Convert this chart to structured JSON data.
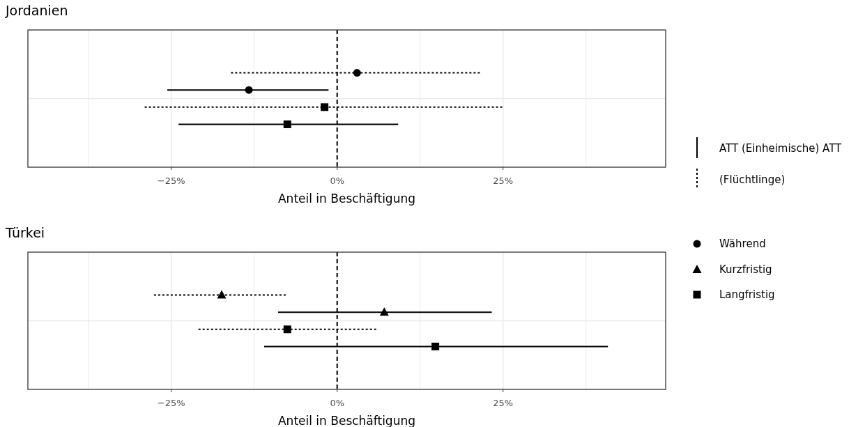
{
  "chart_data": [
    {
      "type": "scatter",
      "orientation": "horizontal",
      "title": "Jordanien",
      "xlabel": "Anteil in Beschäftigung",
      "categories": [
        null,
        null,
        null,
        null,
        null,
        null,
        null,
        null
      ],
      "xlim": [
        -46.6,
        49.5
      ],
      "xticks": [
        {
          "value": -25,
          "label": "−25%"
        },
        {
          "value": 0,
          "label": "0%"
        },
        {
          "value": 25,
          "label": "25%"
        }
      ],
      "grid": true,
      "ref_lines": [
        {
          "axis": "x",
          "value": 0,
          "line_style": "dashed",
          "color": "#000000"
        }
      ],
      "annotations": [
        "ATT (Einheimische) ATT",
        "(Flüchtlinge)",
        "Während",
        "Kurzfristig",
        "Langfristig"
      ],
      "series": [
        {
          "color": "#000000",
          "marker": "circle",
          "line_style": "dotted",
          "values": [
            null,
            null,
            3.0,
            null,
            null,
            null,
            null,
            null
          ],
          "errors": [
            null,
            null,
            [
              -16.0,
              21.5
            ],
            null,
            null,
            null,
            null,
            null
          ]
        },
        {
          "color": "#000000",
          "marker": "circle",
          "line_style": "solid",
          "values": [
            null,
            null,
            null,
            -13.3,
            null,
            null,
            null,
            null
          ],
          "errors": [
            null,
            null,
            null,
            [
              -25.6,
              -1.3
            ],
            null,
            null,
            null,
            null
          ]
        },
        {
          "color": "#000000",
          "marker": "square",
          "line_style": "dotted",
          "values": [
            null,
            null,
            null,
            null,
            -1.9,
            null,
            null,
            null
          ],
          "errors": [
            null,
            null,
            null,
            null,
            [
              -29.0,
              25.2
            ],
            null,
            null,
            null
          ]
        },
        {
          "color": "#000000",
          "marker": "square",
          "line_style": "solid",
          "values": [
            null,
            null,
            null,
            null,
            null,
            -7.5,
            null,
            null
          ],
          "errors": [
            null,
            null,
            null,
            null,
            null,
            [
              -23.9,
              9.2
            ],
            null,
            null
          ]
        }
      ]
    },
    {
      "type": "scatter",
      "orientation": "horizontal",
      "title": "Türkei",
      "xlabel": "Anteil in Beschäftigung",
      "categories": [
        null,
        null,
        null,
        null,
        null,
        null,
        null,
        null
      ],
      "xlim": [
        -46.6,
        49.5
      ],
      "xticks": [
        {
          "value": -25,
          "label": "−25%"
        },
        {
          "value": 0,
          "label": "0%"
        },
        {
          "value": 25,
          "label": "25%"
        }
      ],
      "grid": true,
      "ref_lines": [
        {
          "axis": "x",
          "value": 0,
          "line_style": "dashed",
          "color": "#000000"
        }
      ],
      "series": [
        {
          "color": "#000000",
          "marker": "triangle",
          "line_style": "dotted",
          "values": [
            null,
            null,
            -17.4,
            null,
            null,
            null,
            null,
            null
          ],
          "errors": [
            null,
            null,
            [
              -27.6,
              -7.6
            ],
            null,
            null,
            null,
            null,
            null
          ]
        },
        {
          "color": "#000000",
          "marker": "triangle",
          "line_style": "solid",
          "values": [
            null,
            null,
            null,
            7.1,
            null,
            null,
            null,
            null
          ],
          "errors": [
            null,
            null,
            null,
            [
              -8.9,
              23.3
            ],
            null,
            null,
            null,
            null
          ]
        },
        {
          "color": "#000000",
          "marker": "square",
          "line_style": "dotted",
          "values": [
            null,
            null,
            null,
            null,
            -7.5,
            null,
            null,
            null
          ],
          "errors": [
            null,
            null,
            null,
            null,
            [
              -20.9,
              5.9
            ],
            null,
            null,
            null
          ]
        },
        {
          "color": "#000000",
          "marker": "square",
          "line_style": "solid",
          "values": [
            null,
            null,
            null,
            null,
            null,
            14.8,
            null,
            null
          ],
          "errors": [
            null,
            null,
            null,
            null,
            null,
            [
              -11.0,
              40.8
            ],
            null,
            null
          ]
        }
      ]
    }
  ]
}
